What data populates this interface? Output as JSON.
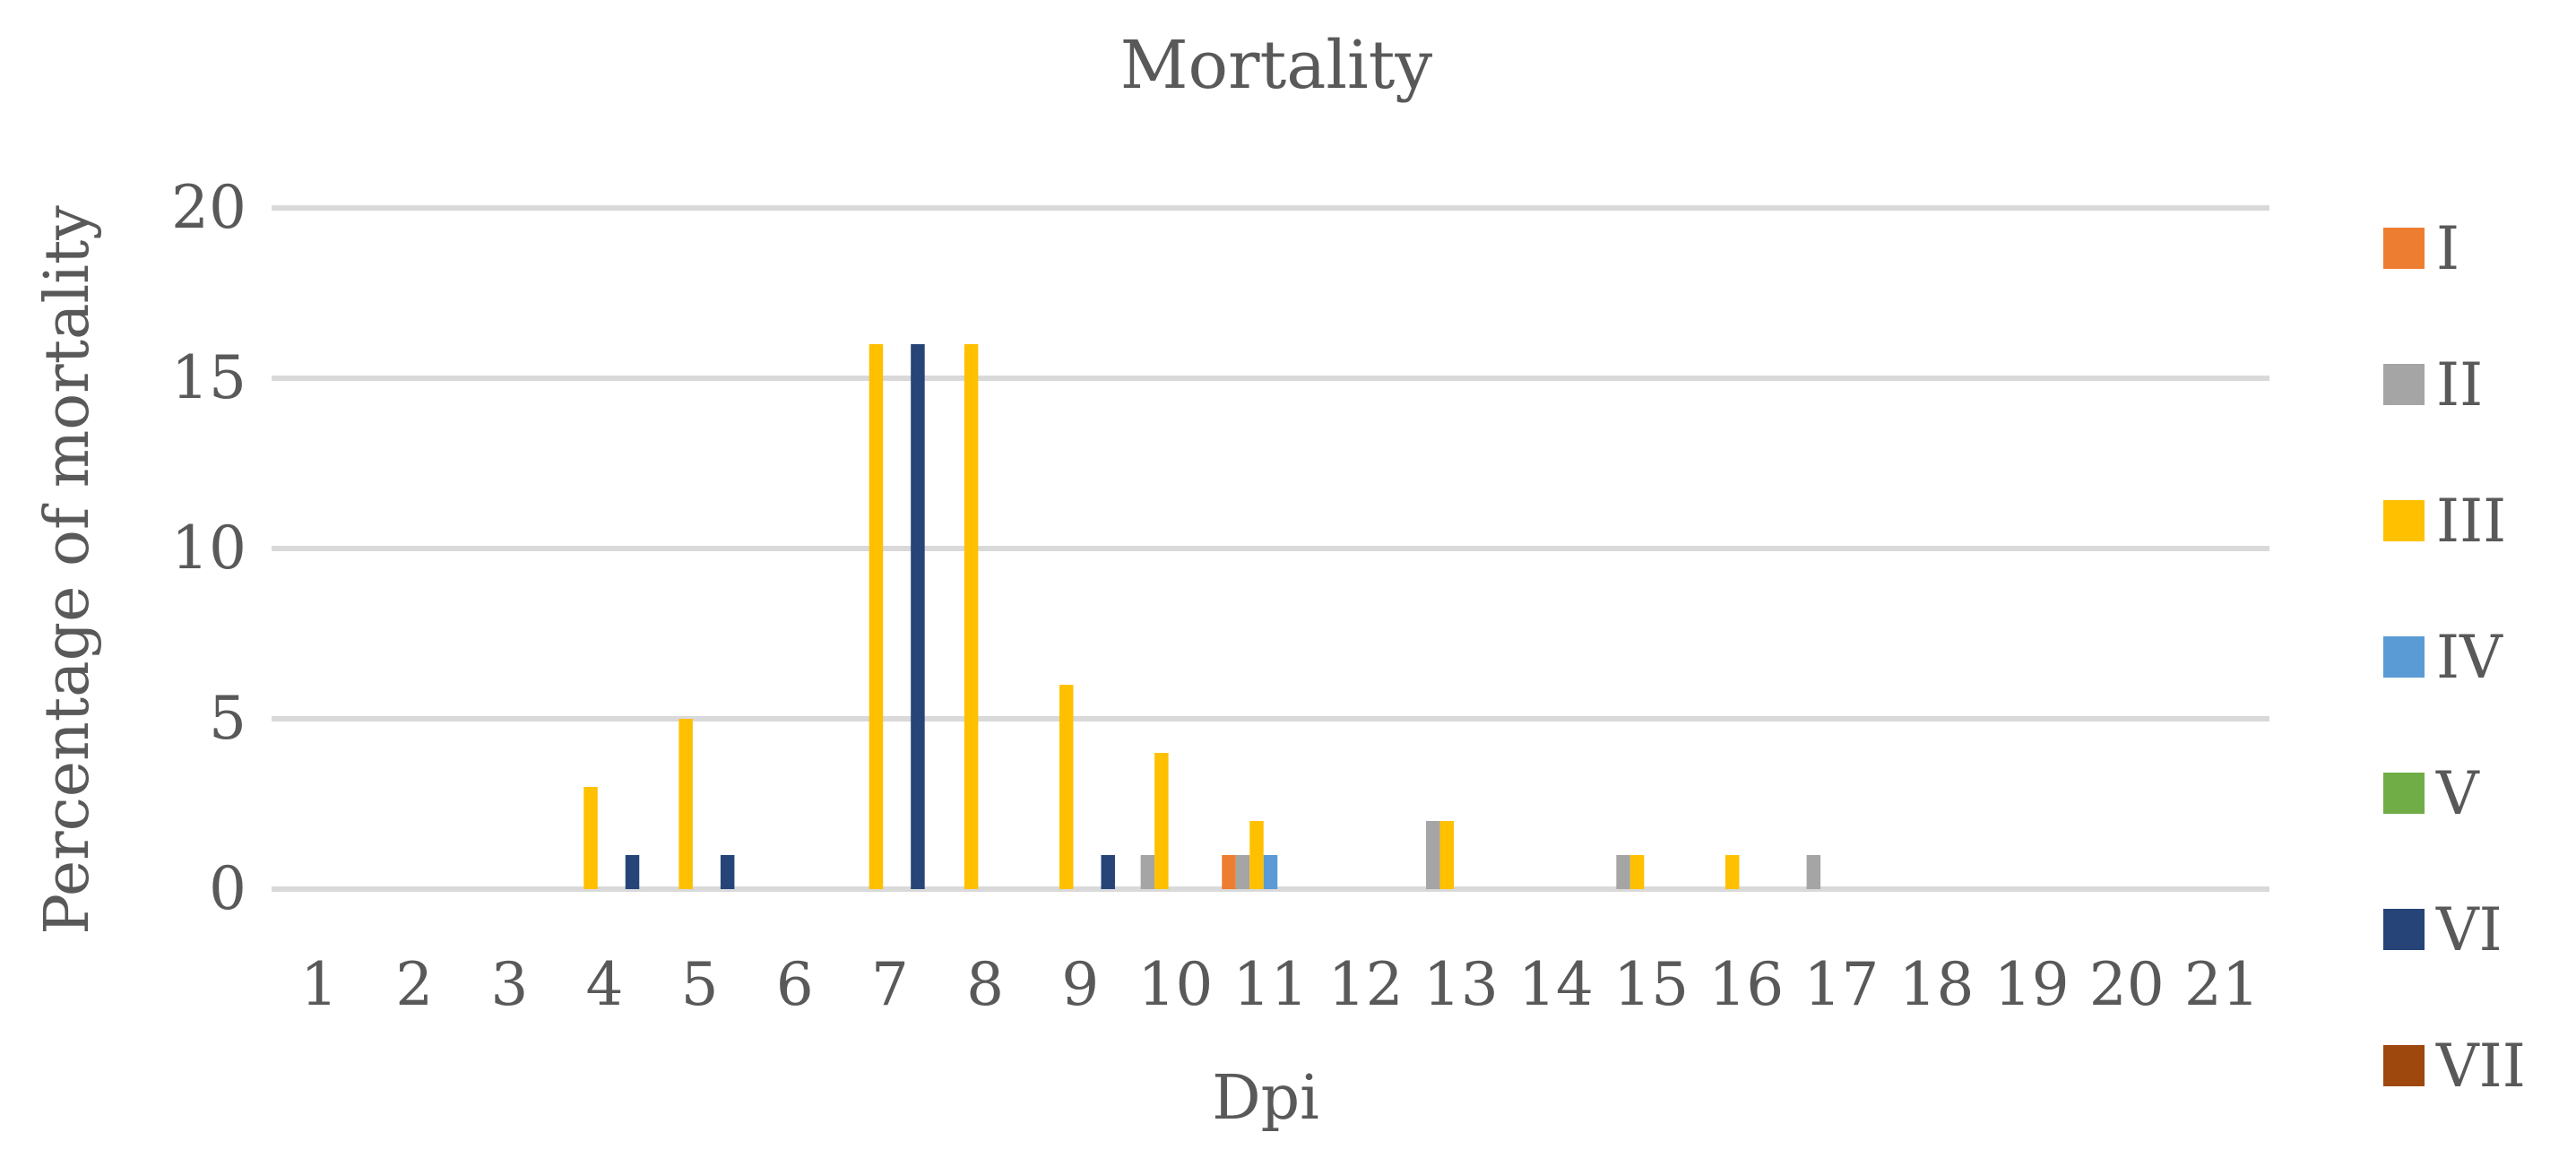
{
  "chart_data": {
    "type": "bar",
    "title": "Mortality",
    "xlabel": "Dpi",
    "ylabel": "Percentage of mortality",
    "ylim": [
      0,
      20
    ],
    "yticks": [
      "0",
      "5",
      "10",
      "15",
      "20"
    ],
    "grid": true,
    "legend_position": "right",
    "categories": [
      "1",
      "2",
      "3",
      "4",
      "5",
      "6",
      "7",
      "8",
      "9",
      "10",
      "11",
      "12",
      "13",
      "14",
      "15",
      "16",
      "17",
      "18",
      "19",
      "20",
      "21"
    ],
    "series": [
      {
        "name": "I",
        "color": "#ED7D31",
        "values": [
          0,
          0,
          0,
          0,
          0,
          0,
          0,
          0,
          0,
          0,
          1,
          0,
          0,
          0,
          0,
          0,
          0,
          0,
          0,
          0,
          0
        ]
      },
      {
        "name": "II",
        "color": "#A5A5A5",
        "values": [
          0,
          0,
          0,
          0,
          0,
          0,
          0,
          0,
          0,
          1,
          1,
          0,
          2,
          0,
          1,
          0,
          1,
          0,
          0,
          0,
          0
        ]
      },
      {
        "name": "III",
        "color": "#FFC000",
        "values": [
          0,
          0,
          0,
          3,
          5,
          0,
          16,
          16,
          6,
          4,
          2,
          0,
          2,
          0,
          1,
          1,
          0,
          0,
          0,
          0,
          0
        ]
      },
      {
        "name": "IV",
        "color": "#5B9BD5",
        "values": [
          0,
          0,
          0,
          0,
          0,
          0,
          0,
          0,
          0,
          0,
          1,
          0,
          0,
          0,
          0,
          0,
          0,
          0,
          0,
          0,
          0
        ]
      },
      {
        "name": "V",
        "color": "#70AD47",
        "values": [
          0,
          0,
          0,
          0,
          0,
          0,
          0,
          0,
          0,
          0,
          0,
          0,
          0,
          0,
          0,
          0,
          0,
          0,
          0,
          0,
          0
        ]
      },
      {
        "name": "VI",
        "color": "#264478",
        "values": [
          0,
          0,
          0,
          1,
          1,
          0,
          16,
          0,
          1,
          0,
          0,
          0,
          0,
          0,
          0,
          0,
          0,
          0,
          0,
          0,
          0
        ]
      },
      {
        "name": "VII",
        "color": "#9E480E",
        "values": [
          0,
          0,
          0,
          0,
          0,
          0,
          0,
          0,
          0,
          0,
          0,
          0,
          0,
          0,
          0,
          0,
          0,
          0,
          0,
          0,
          0
        ]
      }
    ]
  }
}
